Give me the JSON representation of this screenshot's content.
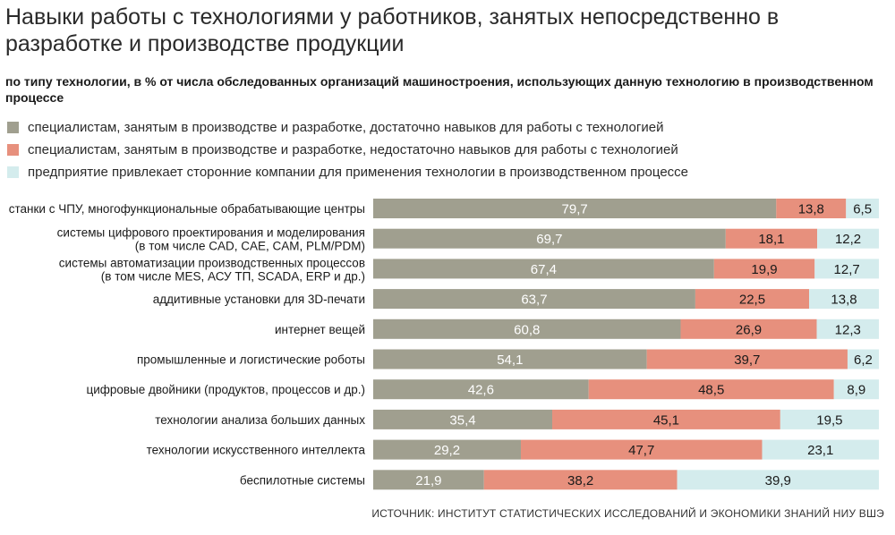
{
  "chart_data": {
    "type": "bar",
    "orientation": "horizontal",
    "stacked": true,
    "title": "Навыки работы с технологиями у работников, занятых непосредственно в разработке и производстве продукции",
    "subtitle": "по типу технологии, в % от числа обследованных организаций машиностроения, использующих данную технологию в производственном процессе",
    "categories": [
      [
        "станки с ЧПУ, многофункциональные обрабатывающие центры"
      ],
      [
        "системы цифрового проектирования и моделирования",
        "(в том числе CAD, CAE, CAM, PLM/PDM)"
      ],
      [
        "системы автоматизации производственных процессов",
        "(в том числе MES, АСУ ТП, SCADA, ERP и др.)"
      ],
      [
        "аддитивные установки для 3D-печати"
      ],
      [
        "интернет вещей"
      ],
      [
        "промышленные и логистические роботы"
      ],
      [
        "цифровые двойники (продуктов, процессов и др.)"
      ],
      [
        "технологии анализа больших данных"
      ],
      [
        "технологии искусственного интеллекта"
      ],
      [
        "беспилотные системы"
      ]
    ],
    "series": [
      {
        "name": "специалистам, занятым в производстве и разработке, достаточно навыков для работы с технологией",
        "color": "#a09f8f",
        "label_color": "#ffffff",
        "values": [
          79.7,
          69.7,
          67.4,
          63.7,
          60.8,
          54.1,
          42.6,
          35.4,
          29.2,
          21.9
        ]
      },
      {
        "name": "специалистам, занятым в производстве и разработке, недостаточно навыков для работы с технологией",
        "color": "#e7907d",
        "label_color": "#1a1a1a",
        "values": [
          13.8,
          18.1,
          19.9,
          22.5,
          26.9,
          39.7,
          48.5,
          45.1,
          47.7,
          38.2
        ]
      },
      {
        "name": "предприятие привлекает сторонние компании для применения технологии в производственном процессе",
        "color": "#d4eced",
        "label_color": "#1a1a1a",
        "values": [
          6.5,
          12.2,
          12.7,
          13.8,
          12.3,
          6.2,
          8.9,
          19.5,
          23.1,
          39.9
        ]
      }
    ],
    "value_labels": [
      [
        "79,7",
        "13,8",
        "6,5"
      ],
      [
        "69,7",
        "18,1",
        "12,2"
      ],
      [
        "67,4",
        "19,9",
        "12,7"
      ],
      [
        "63,7",
        "22,5",
        "13,8"
      ],
      [
        "60,8",
        "26,9",
        "12,3"
      ],
      [
        "54,1",
        "39,7",
        "6,2"
      ],
      [
        "42,6",
        "48,5",
        "8,9"
      ],
      [
        "35,4",
        "45,1",
        "19,5"
      ],
      [
        "29,2",
        "47,7",
        "23,1"
      ],
      [
        "21,9",
        "38,2",
        "39,9"
      ]
    ],
    "xlim": [
      0,
      100
    ],
    "legend_position": "top",
    "grid": false
  },
  "source": "ИСТОЧНИК: ИНСТИТУТ СТАТИСТИЧЕСКИХ ИССЛЕДОВАНИЙ И ЭКОНОМИКИ ЗНАНИЙ НИУ ВШЭ"
}
